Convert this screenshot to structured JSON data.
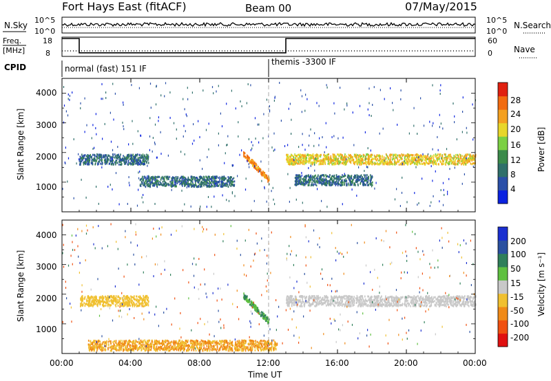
{
  "header": {
    "title": "Fort Hays East (fitACF)",
    "beam": "Beam 00",
    "date": "07/May/2015"
  },
  "noise_panel": {
    "left_label": "N.Sky",
    "right_label": "N.Search",
    "left_ticks": [
      "10^5",
      "10^0"
    ],
    "right_ticks": [
      "10^5",
      "10^0"
    ]
  },
  "freq_panel": {
    "left_label_1": "Freq.",
    "left_label_2": "[MHz]",
    "left_ticks": [
      "18",
      "8"
    ],
    "right_label": "Nave",
    "right_ticks": [
      "60",
      "0"
    ]
  },
  "cpid": {
    "label": "CPID",
    "modes": [
      "normal (fast) 151 IF",
      "themis -3300 IF"
    ],
    "mode_change_time": "12:00"
  },
  "power_panel": {
    "ylabel": "Slant Range [km]",
    "yticks": [
      "4000",
      "3000",
      "2000",
      "1000"
    ],
    "colorbar_label": "Power [dB]",
    "colorbar_ticks": [
      "28",
      "24",
      "20",
      "16",
      "12",
      "8",
      "4"
    ],
    "colorbar_colors": [
      "#0a22e0",
      "#2a4fa8",
      "#2f6f6a",
      "#3b8a4a",
      "#7bd043",
      "#e8d62a",
      "#f4a020",
      "#f26b10",
      "#e02010"
    ]
  },
  "velocity_panel": {
    "ylabel": "Slant Range [km]",
    "yticks": [
      "4000",
      "3000",
      "2000",
      "1000"
    ],
    "colorbar_label": "Velocity [m s⁻¹]",
    "colorbar_ticks": [
      "200",
      "100",
      "50",
      "15",
      "-15",
      "-50",
      "-100",
      "-200"
    ],
    "colorbar_colors": [
      "#1a2fd0",
      "#2a50a0",
      "#2f7f5a",
      "#5fc040",
      "#c8c8c8",
      "#f0c030",
      "#f08a18",
      "#f05010",
      "#e01010"
    ]
  },
  "xaxis": {
    "label": "Time UT",
    "ticks": [
      "00:00",
      "04:00",
      "08:00",
      "12:00",
      "16:00",
      "20:00",
      "00:00"
    ]
  },
  "chart_data": [
    {
      "type": "line",
      "title": "N.Sky / N.Search",
      "x_range": [
        "00:00",
        "24:00"
      ],
      "y_scale": "log",
      "ylim": [
        1,
        100000
      ]
    },
    {
      "type": "line",
      "title": "Freq. [MHz] / Nave",
      "x": [
        "00:00",
        "01:00",
        "01:00",
        "13:00",
        "13:00",
        "24:00"
      ],
      "freq_mhz": [
        18,
        18,
        10,
        10,
        18,
        18
      ],
      "ylim": [
        8,
        18
      ]
    },
    {
      "type": "heatmap",
      "title": "Power [dB]",
      "x_range": [
        "00:00",
        "24:00"
      ],
      "y_range_km": [
        0,
        4500
      ],
      "features": [
        {
          "name": "scatter band",
          "t_start": 1.0,
          "t_end": 5.0,
          "range_km": 1800,
          "value_db": 8
        },
        {
          "name": "scatter band",
          "t_start": 4.5,
          "t_end": 10.0,
          "range_km": 1050,
          "value_db": 8
        },
        {
          "name": "main echo",
          "t_start": 13.0,
          "t_end": 24.0,
          "range_km": 1800,
          "value_db": 20
        },
        {
          "name": "descending echo",
          "t_start": 10.5,
          "t_end": 12.0,
          "range_km": 1500,
          "value_db": 24
        },
        {
          "name": "lower band",
          "t_start": 13.5,
          "t_end": 18.0,
          "range_km": 1100,
          "value_db": 8
        }
      ]
    },
    {
      "type": "heatmap",
      "title": "Velocity [m s-1]",
      "x_range": [
        "00:00",
        "24:00"
      ],
      "y_range_km": [
        0,
        4500
      ],
      "features": [
        {
          "name": "main echo",
          "t_start": 13.0,
          "t_end": 24.0,
          "range_km": 1800,
          "value_ms": 0
        },
        {
          "name": "descending echo",
          "t_start": 10.5,
          "t_end": 12.0,
          "range_km": 1500,
          "value_ms": 30
        },
        {
          "name": "scatter band",
          "t_start": 1.0,
          "t_end": 5.0,
          "range_km": 1800,
          "value_ms": -40
        },
        {
          "name": "near range",
          "t_start": 1.5,
          "t_end": 12.5,
          "range_km": 300,
          "value_ms": -50
        }
      ]
    }
  ]
}
